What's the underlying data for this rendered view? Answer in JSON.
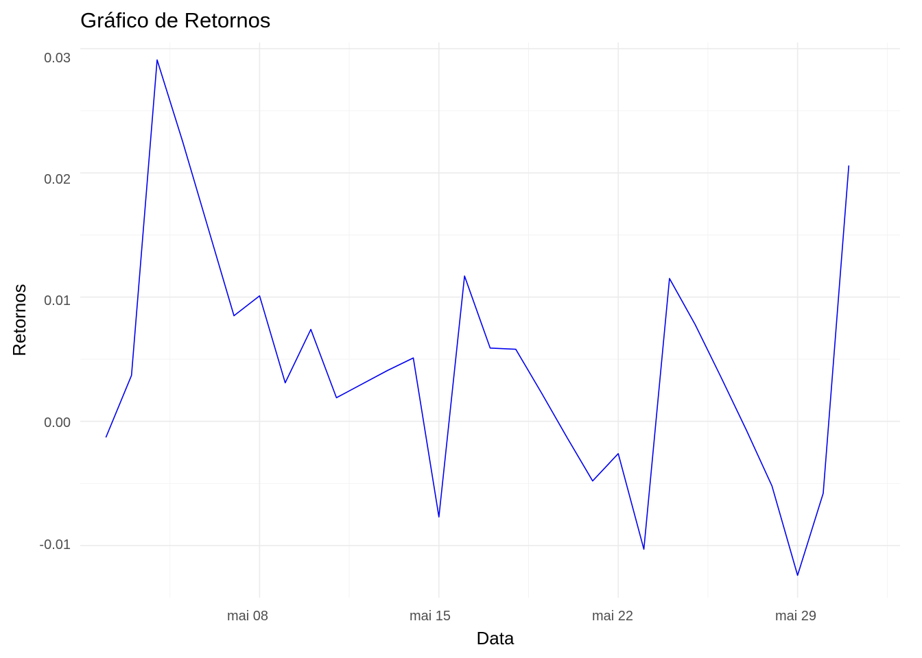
{
  "chart_data": {
    "type": "line",
    "title": "Gráfico de Retornos",
    "xlabel": "Data",
    "ylabel": "Retornos",
    "x_tick_labels": [
      "mai 08",
      "mai 15",
      "mai 22",
      "mai 29"
    ],
    "y_tick_labels": [
      "-0.01",
      "0.00",
      "0.01",
      "0.02",
      "0.03"
    ],
    "ylim": [
      -0.0142,
      0.0305
    ],
    "xlim": [
      "2023-05-01",
      "2023-06-02"
    ],
    "grid": true,
    "line_color": "#0000ee",
    "series": [
      {
        "x": [
          "2023-05-02",
          "2023-05-03",
          "2023-05-04",
          "2023-05-05",
          "2023-05-06",
          "2023-05-07",
          "2023-05-08",
          "2023-05-09",
          "2023-05-10",
          "2023-05-11",
          "2023-05-12",
          "2023-05-13",
          "2023-05-14",
          "2023-05-15",
          "2023-05-16",
          "2023-05-17",
          "2023-05-18",
          "2023-05-19",
          "2023-05-20",
          "2023-05-21",
          "2023-05-22",
          "2023-05-23",
          "2023-05-24",
          "2023-05-25",
          "2023-05-26",
          "2023-05-27",
          "2023-05-28",
          "2023-05-29",
          "2023-05-30",
          "2023-05-31",
          "2023-06-01"
        ],
        "values": [
          -0.0013,
          0.0037,
          0.0291,
          0.0225,
          0.0155,
          0.0085,
          0.0101,
          0.0031,
          0.0074,
          0.0019,
          0.003,
          0.0041,
          0.0051,
          -0.0077,
          0.0117,
          0.0059,
          0.0058,
          0.0023,
          -0.0013,
          -0.0048,
          -0.0026,
          -0.0103,
          0.0115,
          0.0078,
          0.0036,
          -0.0007,
          -0.0052,
          -0.0124,
          -0.0058,
          0.0206,
          null
        ]
      }
    ]
  }
}
